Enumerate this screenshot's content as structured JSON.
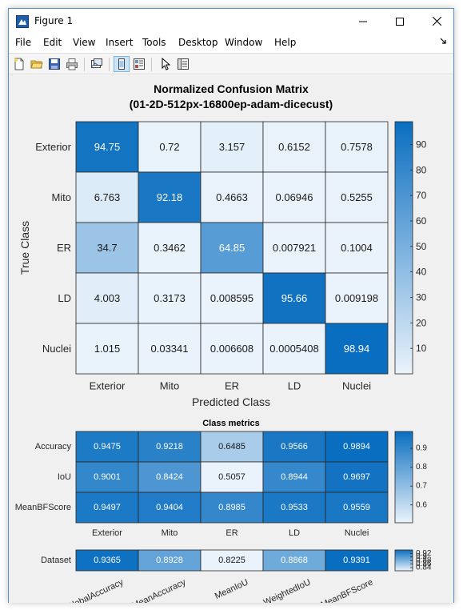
{
  "window": {
    "title": "Figure 1",
    "icon": "matlab-figure-icon",
    "controls": [
      "minimize-icon",
      "maximize-icon",
      "close-icon"
    ]
  },
  "menu": {
    "items": [
      "File",
      "Edit",
      "View",
      "Insert",
      "Tools",
      "Desktop",
      "Window",
      "Help"
    ]
  },
  "toolbar": {
    "icons": [
      "new-figure-icon",
      "open-file-icon",
      "save-icon",
      "print-icon",
      "link-plot-icon",
      "hide-plot-tools-icon",
      "show-plot-tools-icon",
      "edit-plot-arrow-icon",
      "property-inspector-icon"
    ]
  },
  "chart_data": [
    {
      "type": "heatmap",
      "title": "Normalized Confusion Matrix",
      "subtitle": "(01-2D-512px-16800ep-adam-dicecust)",
      "xlabel": "Predicted Class",
      "ylabel": "True Class",
      "x_categories": [
        "Exterior",
        "Mito",
        "ER",
        "LD",
        "Nuclei"
      ],
      "y_categories": [
        "Exterior",
        "Mito",
        "ER",
        "LD",
        "Nuclei"
      ],
      "values": [
        [
          94.75,
          0.72,
          3.157,
          0.6152,
          0.7578
        ],
        [
          6.763,
          92.18,
          0.4663,
          0.06946,
          0.5255
        ],
        [
          34.7,
          0.3462,
          64.85,
          0.007921,
          0.1004
        ],
        [
          4.003,
          0.3173,
          0.008595,
          95.66,
          0.009198
        ],
        [
          1.015,
          0.03341,
          0.006608,
          0.0005408,
          98.94
        ]
      ],
      "labels": [
        [
          "94.75",
          "0.72",
          "3.157",
          "0.6152",
          "0.7578"
        ],
        [
          "6.763",
          "92.18",
          "0.4663",
          "0.06946",
          "0.5255"
        ],
        [
          "34.7",
          "0.3462",
          "64.85",
          "0.007921",
          "0.1004"
        ],
        [
          "4.003",
          "0.3173",
          "0.008595",
          "95.66",
          "0.009198"
        ],
        [
          "1.015",
          "0.03341",
          "0.006608",
          "0.0005408",
          "98.94"
        ]
      ],
      "colorbar": {
        "min": 0,
        "max": 98.94,
        "ticks": [
          10,
          20,
          30,
          40,
          50,
          60,
          70,
          80,
          90
        ]
      },
      "colormap": {
        "low": "#eaf3fb",
        "high": "#0a6ec0"
      }
    },
    {
      "type": "heatmap",
      "title": "Class metrics",
      "x_categories": [
        "Exterior",
        "Mito",
        "ER",
        "LD",
        "Nuclei"
      ],
      "y_categories": [
        "Accuracy",
        "IoU",
        "MeanBFScore"
      ],
      "values": [
        [
          0.9475,
          0.9218,
          0.6485,
          0.9566,
          0.9894
        ],
        [
          0.9001,
          0.8424,
          0.5057,
          0.8944,
          0.9697
        ],
        [
          0.9497,
          0.9404,
          0.8985,
          0.9533,
          0.9559
        ]
      ],
      "labels": [
        [
          "0.9475",
          "0.9218",
          "0.6485",
          "0.9566",
          "0.9894"
        ],
        [
          "0.9001",
          "0.8424",
          "0.5057",
          "0.8944",
          "0.9697"
        ],
        [
          "0.9497",
          "0.9404",
          "0.8985",
          "0.9533",
          "0.9559"
        ]
      ],
      "colorbar": {
        "min": 0.5057,
        "max": 0.9894,
        "ticks": [
          0.6,
          0.7,
          0.8,
          0.9
        ]
      },
      "colormap": {
        "low": "#eaf3fb",
        "high": "#0a6ec0"
      }
    },
    {
      "type": "heatmap",
      "x_categories": [
        "GlobalAccuracy",
        "MeanAccuracy",
        "MeanIoU",
        "WeightedIoU",
        "MeanBFScore"
      ],
      "y_categories": [
        "Dataset"
      ],
      "values": [
        [
          0.9365,
          0.8928,
          0.8225,
          0.8868,
          0.9391
        ]
      ],
      "labels": [
        [
          "0.9365",
          "0.8928",
          "0.8225",
          "0.8868",
          "0.9391"
        ]
      ],
      "colorbar": {
        "min": 0.8225,
        "max": 0.9391,
        "ticks": [
          0.84,
          0.86,
          0.88,
          0.9,
          0.92
        ]
      },
      "colormap": {
        "low": "#eaf3fb",
        "high": "#0a6ec0"
      }
    }
  ]
}
